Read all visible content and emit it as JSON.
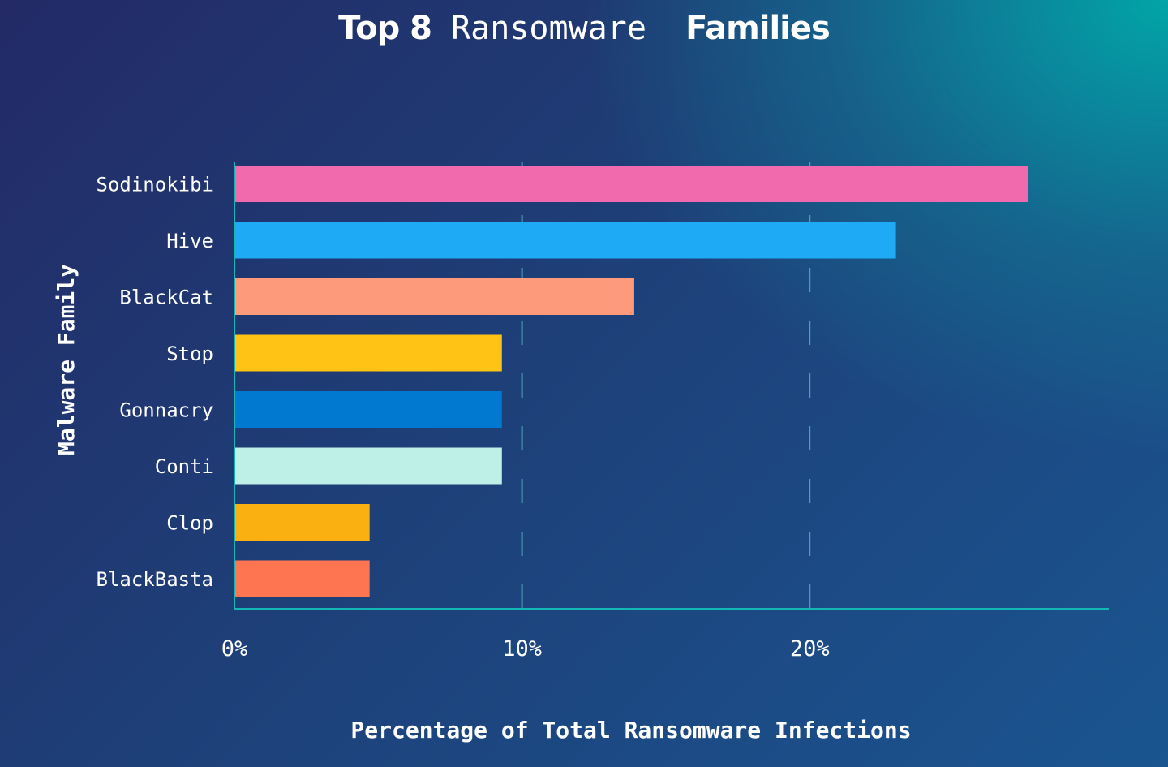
{
  "title": {
    "part1": "Top 8",
    "part2": "Ransomware",
    "part3": "Families"
  },
  "chart_data": {
    "type": "bar",
    "orientation": "horizontal",
    "title": "Top 8 Ransomware Families",
    "xlabel": "Percentage of Total Ransomware Infections",
    "ylabel": "Malware Family",
    "xlim": [
      0,
      30.4
    ],
    "xticks": [
      0,
      10,
      20
    ],
    "xtick_labels": [
      "0%",
      "10%",
      "20%"
    ],
    "grid": "x-dashed",
    "categories": [
      "Sodinokibi",
      "Hive",
      "BlackCat",
      "Stop",
      "Gonnacry",
      "Conti",
      "Clop",
      "BlackBasta"
    ],
    "values": [
      27.6,
      23.0,
      13.9,
      9.3,
      9.3,
      9.3,
      4.7,
      4.7
    ],
    "colors": [
      "#f06aad",
      "#1eaaf5",
      "#fe9a7c",
      "#fec315",
      "#0179d0",
      "#bef0e8",
      "#fbb012",
      "#fd7551"
    ]
  }
}
